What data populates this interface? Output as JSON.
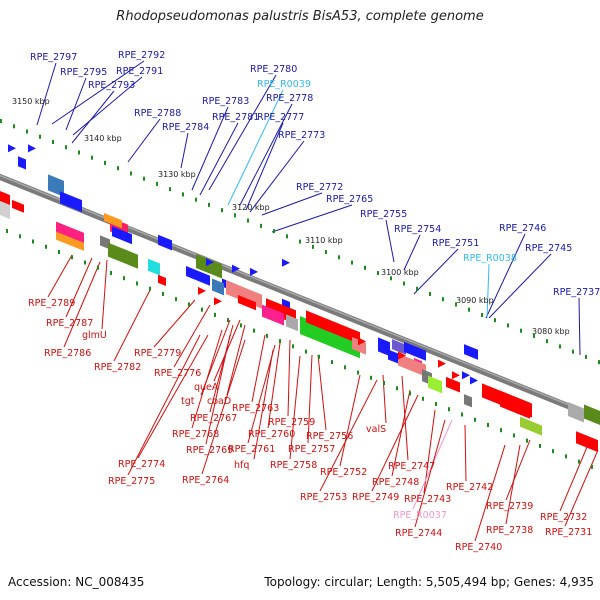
{
  "title": "Rhodopseudomonas palustris BisA53, complete genome",
  "footer": {
    "accession": "Accession: NC_008435",
    "summary": "Topology: circular; Length: 5,505,494 bp; Genes: 4,935"
  },
  "colors": {
    "forward_label": "#1a1aa8",
    "reverse_label": "#d01010",
    "rna_label": "#33bbee",
    "pseudo_label": "#ee99cc",
    "backbone": "#8a8a8a"
  },
  "kbp_ticks": [
    "3150 kbp",
    "3140 kbp",
    "3130 kbp",
    "3120 kbp",
    "3110 kbp",
    "3100 kbp",
    "3090 kbp",
    "3080 kbp"
  ],
  "top_labels": [
    {
      "text": "RPE_2797",
      "kind": "forward"
    },
    {
      "text": "RPE_2792",
      "kind": "forward"
    },
    {
      "text": "RPE_2795",
      "kind": "forward"
    },
    {
      "text": "RPE_2791",
      "kind": "forward"
    },
    {
      "text": "RPE_2793",
      "kind": "forward"
    },
    {
      "text": "RPE_2780",
      "kind": "forward"
    },
    {
      "text": "RPE_R0039",
      "kind": "rna"
    },
    {
      "text": "RPE_2778",
      "kind": "forward"
    },
    {
      "text": "RPE_2783",
      "kind": "forward"
    },
    {
      "text": "RPE_2788",
      "kind": "forward"
    },
    {
      "text": "RPE_2781",
      "kind": "forward"
    },
    {
      "text": "RPE_2777",
      "kind": "forward"
    },
    {
      "text": "RPE_2784",
      "kind": "forward"
    },
    {
      "text": "RPE_2773",
      "kind": "forward"
    },
    {
      "text": "RPE_2772",
      "kind": "forward"
    },
    {
      "text": "RPE_2765",
      "kind": "forward"
    },
    {
      "text": "RPE_2755",
      "kind": "forward"
    },
    {
      "text": "RPE_2754",
      "kind": "forward"
    },
    {
      "text": "RPE_2746",
      "kind": "forward"
    },
    {
      "text": "RPE_2751",
      "kind": "forward"
    },
    {
      "text": "RPE_2745",
      "kind": "forward"
    },
    {
      "text": "RPE_R0038",
      "kind": "rna"
    },
    {
      "text": "RPE_2737",
      "kind": "forward"
    }
  ],
  "bottom_labels": [
    {
      "text": "RPE_2789",
      "kind": "reverse"
    },
    {
      "text": "RPE_2787",
      "kind": "reverse"
    },
    {
      "text": "glmU",
      "kind": "reverse"
    },
    {
      "text": "RPE_2786",
      "kind": "reverse"
    },
    {
      "text": "RPE_2779",
      "kind": "reverse"
    },
    {
      "text": "RPE_2782",
      "kind": "reverse"
    },
    {
      "text": "RPE_2776",
      "kind": "reverse"
    },
    {
      "text": "queA",
      "kind": "reverse"
    },
    {
      "text": "tgt",
      "kind": "reverse"
    },
    {
      "text": "coaD",
      "kind": "reverse"
    },
    {
      "text": "RPE_2767",
      "kind": "reverse"
    },
    {
      "text": "RPE_2763",
      "kind": "reverse"
    },
    {
      "text": "RPE_2759",
      "kind": "reverse"
    },
    {
      "text": "RPE_2768",
      "kind": "reverse"
    },
    {
      "text": "RPE_2760",
      "kind": "reverse"
    },
    {
      "text": "RPE_2756",
      "kind": "reverse"
    },
    {
      "text": "RPE_2769",
      "kind": "reverse"
    },
    {
      "text": "RPE_2761",
      "kind": "reverse"
    },
    {
      "text": "RPE_2757",
      "kind": "reverse"
    },
    {
      "text": "hfq",
      "kind": "reverse"
    },
    {
      "text": "RPE_2758",
      "kind": "reverse"
    },
    {
      "text": "RPE_2774",
      "kind": "reverse"
    },
    {
      "text": "RPE_2752",
      "kind": "reverse"
    },
    {
      "text": "valS",
      "kind": "reverse"
    },
    {
      "text": "RPE_2747",
      "kind": "reverse"
    },
    {
      "text": "RPE_2775",
      "kind": "reverse"
    },
    {
      "text": "RPE_2764",
      "kind": "reverse"
    },
    {
      "text": "RPE_2748",
      "kind": "reverse"
    },
    {
      "text": "RPE_2742",
      "kind": "reverse"
    },
    {
      "text": "RPE_2753",
      "kind": "reverse"
    },
    {
      "text": "RPE_2749",
      "kind": "reverse"
    },
    {
      "text": "RPE_2743",
      "kind": "reverse"
    },
    {
      "text": "RPE_2739",
      "kind": "reverse"
    },
    {
      "text": "RPE_R0037",
      "kind": "pseudo"
    },
    {
      "text": "RPE_2732",
      "kind": "reverse"
    },
    {
      "text": "RPE_2738",
      "kind": "reverse"
    },
    {
      "text": "RPE_2744",
      "kind": "reverse"
    },
    {
      "text": "RPE_2731",
      "kind": "reverse"
    },
    {
      "text": "RPE_2740",
      "kind": "reverse"
    }
  ]
}
